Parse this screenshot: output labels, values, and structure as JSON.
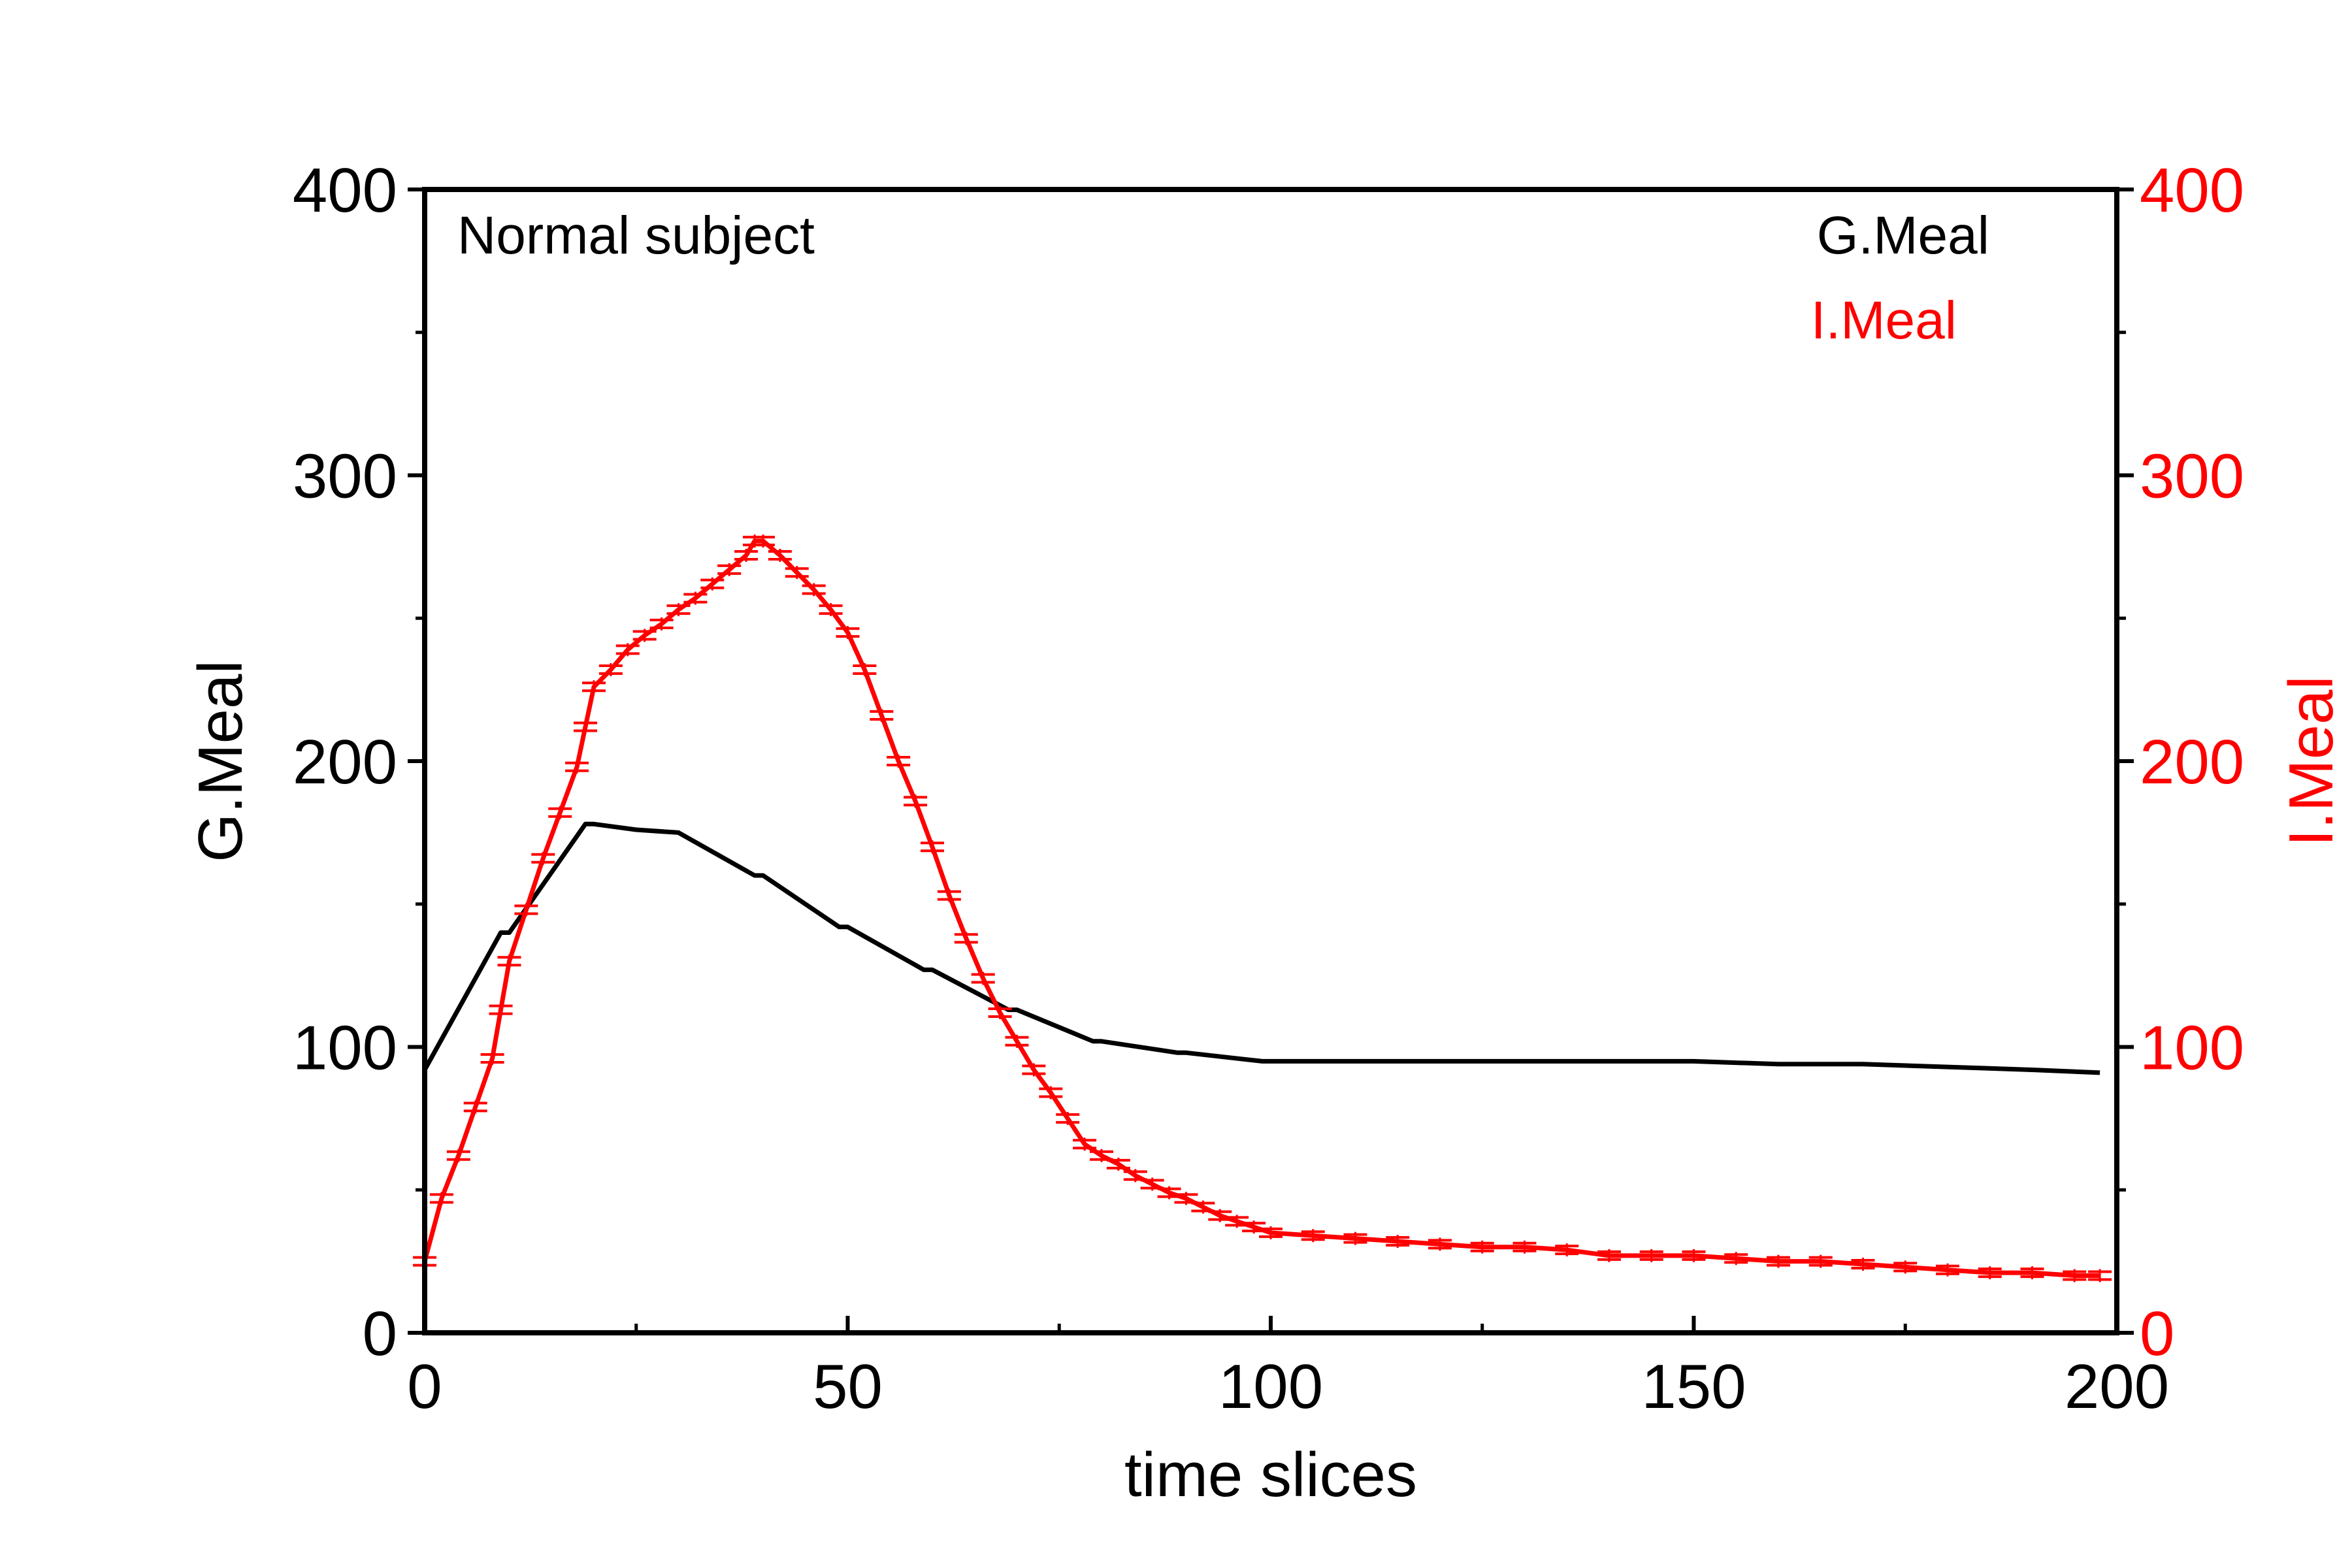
{
  "chart_data": {
    "type": "line",
    "annotation": "Normal subject",
    "xlabel": "time slices",
    "ylabel_left": "G.Meal",
    "ylabel_right": "I.Meal",
    "xlim": [
      0,
      200
    ],
    "ylim_left": [
      0,
      400
    ],
    "ylim_right": [
      0,
      400
    ],
    "x_ticks": [
      0,
      50,
      100,
      150,
      200
    ],
    "y_ticks_left": [
      0,
      100,
      200,
      300,
      400
    ],
    "y_ticks_right": [
      0,
      100,
      200,
      300,
      400
    ],
    "grid": false,
    "legend_position": "top-right",
    "colors": {
      "left_axis": "#000000",
      "right_axis": "#ff0000"
    },
    "series": [
      {
        "name": "G.Meal",
        "axis": "left",
        "color": "#000000",
        "x": [
          0,
          9,
          10,
          19,
          20,
          25,
          30,
          39,
          40,
          49,
          50,
          59,
          60,
          69,
          70,
          79,
          80,
          89,
          90,
          99,
          100,
          110,
          120,
          130,
          140,
          150,
          160,
          170,
          180,
          190,
          198
        ],
        "values": [
          92,
          140,
          140,
          178,
          178,
          176,
          175,
          160,
          160,
          142,
          142,
          127,
          127,
          113,
          113,
          102,
          102,
          98,
          98,
          95,
          95,
          95,
          95,
          95,
          95,
          95,
          94,
          94,
          93,
          92,
          91
        ]
      },
      {
        "name": "I.Meal",
        "axis": "right",
        "color": "#ff0000",
        "x": [
          0,
          2,
          4,
          6,
          8,
          9,
          10,
          12,
          14,
          16,
          18,
          19,
          20,
          22,
          24,
          26,
          28,
          30,
          32,
          34,
          36,
          38,
          39,
          40,
          42,
          44,
          46,
          48,
          50,
          52,
          54,
          56,
          58,
          60,
          62,
          64,
          66,
          68,
          70,
          72,
          74,
          76,
          78,
          80,
          82,
          84,
          86,
          88,
          90,
          92,
          94,
          96,
          98,
          100,
          105,
          110,
          115,
          120,
          125,
          130,
          135,
          140,
          145,
          150,
          155,
          160,
          165,
          170,
          175,
          180,
          185,
          190,
          195,
          198
        ],
        "values": [
          25,
          47,
          62,
          79,
          96,
          113,
          130,
          148,
          166,
          182,
          198,
          212,
          226,
          232,
          239,
          244,
          248,
          253,
          257,
          262,
          267,
          272,
          277,
          277,
          272,
          266,
          260,
          253,
          245,
          232,
          216,
          200,
          186,
          170,
          153,
          138,
          124,
          112,
          102,
          92,
          84,
          75,
          66,
          62,
          59,
          55,
          52,
          49,
          47,
          44,
          41,
          39,
          37,
          35,
          34,
          33,
          32,
          31,
          30,
          30,
          29,
          27,
          27,
          27,
          26,
          25,
          25,
          24,
          23,
          22,
          21,
          21,
          20,
          20
        ]
      }
    ]
  }
}
